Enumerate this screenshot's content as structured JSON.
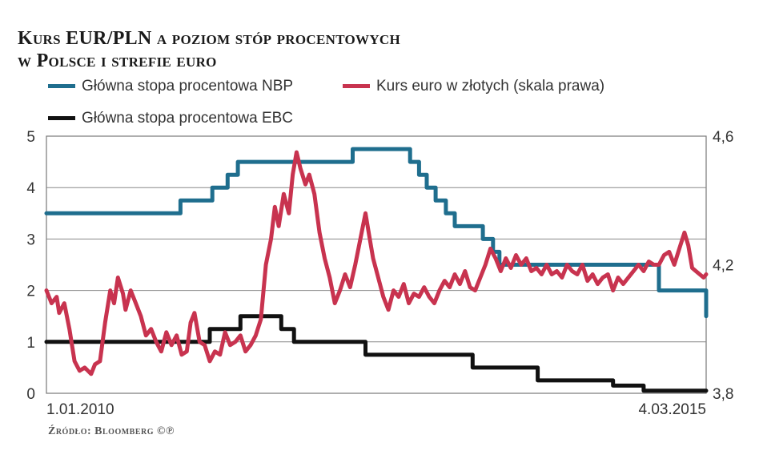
{
  "chart_data": {
    "type": "line",
    "title_line1": "Kurs EUR/PLN a poziom stóp procentowych",
    "title_line2": "w Polsce i strefie euro",
    "date_start": "1.01.2010",
    "date_end": "4.03.2015",
    "ylim_left": [
      0,
      5
    ],
    "yticks_left": [
      "0",
      "1",
      "2",
      "3",
      "4",
      "5"
    ],
    "ylim_right": [
      3.8,
      4.6
    ],
    "yticks_right": [
      {
        "value": 3.8,
        "label": "3,8"
      },
      {
        "value": 4.2,
        "label": "4,2"
      },
      {
        "value": 4.6,
        "label": "4,6"
      }
    ],
    "grid": "horizontal",
    "source": "Źródło: Bloomberg",
    "source_mark": "©℗",
    "series": [
      {
        "name": "Główna stopa procentowa NBP",
        "color": "#1f6e8e",
        "axis": "left",
        "step": true,
        "points": [
          [
            2010.0,
            3.5
          ],
          [
            2011.05,
            3.75
          ],
          [
            2011.3,
            4.0
          ],
          [
            2011.42,
            4.25
          ],
          [
            2011.5,
            4.5
          ],
          [
            2012.4,
            4.75
          ],
          [
            2012.85,
            4.5
          ],
          [
            2012.92,
            4.25
          ],
          [
            2012.98,
            4.0
          ],
          [
            2013.05,
            3.75
          ],
          [
            2013.13,
            3.5
          ],
          [
            2013.2,
            3.25
          ],
          [
            2013.42,
            3.0
          ],
          [
            2013.5,
            2.75
          ],
          [
            2013.55,
            2.5
          ],
          [
            2014.8,
            2.0
          ],
          [
            2015.15,
            2.0
          ],
          [
            2015.17,
            1.5
          ]
        ]
      },
      {
        "name": "Główna stopa procentowa EBC",
        "color": "#111111",
        "axis": "left",
        "step": true,
        "points": [
          [
            2010.0,
            1.0
          ],
          [
            2011.28,
            1.25
          ],
          [
            2011.52,
            1.5
          ],
          [
            2011.84,
            1.25
          ],
          [
            2011.94,
            1.0
          ],
          [
            2012.5,
            0.75
          ],
          [
            2013.34,
            0.5
          ],
          [
            2013.85,
            0.25
          ],
          [
            2014.44,
            0.15
          ],
          [
            2014.68,
            0.05
          ],
          [
            2015.17,
            0.05
          ]
        ]
      },
      {
        "name": "Kurs euro w złotych (skala prawa)",
        "color": "#c8334f",
        "axis": "right",
        "step": false,
        "points": [
          [
            2010.0,
            4.12
          ],
          [
            2010.04,
            4.08
          ],
          [
            2010.08,
            4.1
          ],
          [
            2010.1,
            4.05
          ],
          [
            2010.14,
            4.08
          ],
          [
            2010.18,
            4.0
          ],
          [
            2010.22,
            3.9
          ],
          [
            2010.26,
            3.87
          ],
          [
            2010.3,
            3.88
          ],
          [
            2010.35,
            3.86
          ],
          [
            2010.38,
            3.89
          ],
          [
            2010.42,
            3.9
          ],
          [
            2010.46,
            4.02
          ],
          [
            2010.5,
            4.12
          ],
          [
            2010.53,
            4.08
          ],
          [
            2010.56,
            4.16
          ],
          [
            2010.6,
            4.11
          ],
          [
            2010.62,
            4.06
          ],
          [
            2010.66,
            4.12
          ],
          [
            2010.7,
            4.08
          ],
          [
            2010.74,
            4.04
          ],
          [
            2010.78,
            3.98
          ],
          [
            2010.82,
            4.0
          ],
          [
            2010.86,
            3.96
          ],
          [
            2010.9,
            3.93
          ],
          [
            2010.94,
            3.99
          ],
          [
            2010.98,
            3.95
          ],
          [
            2011.02,
            3.98
          ],
          [
            2011.06,
            3.92
          ],
          [
            2011.1,
            3.93
          ],
          [
            2011.13,
            4.02
          ],
          [
            2011.16,
            4.05
          ],
          [
            2011.2,
            3.96
          ],
          [
            2011.24,
            3.95
          ],
          [
            2011.28,
            3.9
          ],
          [
            2011.32,
            3.93
          ],
          [
            2011.36,
            3.92
          ],
          [
            2011.4,
            3.99
          ],
          [
            2011.44,
            3.95
          ],
          [
            2011.48,
            3.96
          ],
          [
            2011.52,
            3.98
          ],
          [
            2011.56,
            3.93
          ],
          [
            2011.6,
            3.95
          ],
          [
            2011.64,
            3.98
          ],
          [
            2011.68,
            4.03
          ],
          [
            2011.72,
            4.2
          ],
          [
            2011.76,
            4.28
          ],
          [
            2011.79,
            4.38
          ],
          [
            2011.82,
            4.32
          ],
          [
            2011.86,
            4.42
          ],
          [
            2011.9,
            4.36
          ],
          [
            2011.93,
            4.48
          ],
          [
            2011.96,
            4.55
          ],
          [
            2011.99,
            4.5
          ],
          [
            2012.03,
            4.45
          ],
          [
            2012.06,
            4.48
          ],
          [
            2012.1,
            4.42
          ],
          [
            2012.14,
            4.3
          ],
          [
            2012.18,
            4.22
          ],
          [
            2012.22,
            4.16
          ],
          [
            2012.26,
            4.08
          ],
          [
            2012.3,
            4.12
          ],
          [
            2012.34,
            4.17
          ],
          [
            2012.38,
            4.13
          ],
          [
            2012.42,
            4.2
          ],
          [
            2012.46,
            4.28
          ],
          [
            2012.5,
            4.36
          ],
          [
            2012.53,
            4.29
          ],
          [
            2012.56,
            4.22
          ],
          [
            2012.6,
            4.16
          ],
          [
            2012.64,
            4.1
          ],
          [
            2012.68,
            4.06
          ],
          [
            2012.72,
            4.12
          ],
          [
            2012.76,
            4.1
          ],
          [
            2012.8,
            4.14
          ],
          [
            2012.84,
            4.08
          ],
          [
            2012.88,
            4.11
          ],
          [
            2012.92,
            4.1
          ],
          [
            2012.96,
            4.13
          ],
          [
            2013.0,
            4.1
          ],
          [
            2013.04,
            4.08
          ],
          [
            2013.08,
            4.12
          ],
          [
            2013.12,
            4.15
          ],
          [
            2013.16,
            4.13
          ],
          [
            2013.2,
            4.17
          ],
          [
            2013.24,
            4.14
          ],
          [
            2013.28,
            4.18
          ],
          [
            2013.32,
            4.13
          ],
          [
            2013.36,
            4.12
          ],
          [
            2013.4,
            4.16
          ],
          [
            2013.44,
            4.2
          ],
          [
            2013.48,
            4.25
          ],
          [
            2013.52,
            4.22
          ],
          [
            2013.56,
            4.18
          ],
          [
            2013.6,
            4.22
          ],
          [
            2013.64,
            4.19
          ],
          [
            2013.68,
            4.23
          ],
          [
            2013.72,
            4.2
          ],
          [
            2013.76,
            4.22
          ],
          [
            2013.8,
            4.18
          ],
          [
            2013.84,
            4.19
          ],
          [
            2013.88,
            4.17
          ],
          [
            2013.92,
            4.2
          ],
          [
            2013.96,
            4.17
          ],
          [
            2014.0,
            4.18
          ],
          [
            2014.04,
            4.16
          ],
          [
            2014.08,
            4.2
          ],
          [
            2014.12,
            4.18
          ],
          [
            2014.16,
            4.17
          ],
          [
            2014.2,
            4.2
          ],
          [
            2014.24,
            4.15
          ],
          [
            2014.28,
            4.17
          ],
          [
            2014.32,
            4.14
          ],
          [
            2014.36,
            4.16
          ],
          [
            2014.4,
            4.17
          ],
          [
            2014.44,
            4.12
          ],
          [
            2014.48,
            4.16
          ],
          [
            2014.52,
            4.14
          ],
          [
            2014.56,
            4.16
          ],
          [
            2014.6,
            4.18
          ],
          [
            2014.64,
            4.2
          ],
          [
            2014.68,
            4.18
          ],
          [
            2014.72,
            4.21
          ],
          [
            2014.76,
            4.2
          ],
          [
            2014.8,
            4.2
          ],
          [
            2014.84,
            4.23
          ],
          [
            2014.88,
            4.24
          ],
          [
            2014.92,
            4.2
          ],
          [
            2014.96,
            4.25
          ],
          [
            2015.0,
            4.3
          ],
          [
            2015.03,
            4.26
          ],
          [
            2015.06,
            4.19
          ],
          [
            2015.09,
            4.18
          ],
          [
            2015.12,
            4.17
          ],
          [
            2015.15,
            4.16
          ],
          [
            2015.17,
            4.17
          ]
        ]
      }
    ]
  }
}
